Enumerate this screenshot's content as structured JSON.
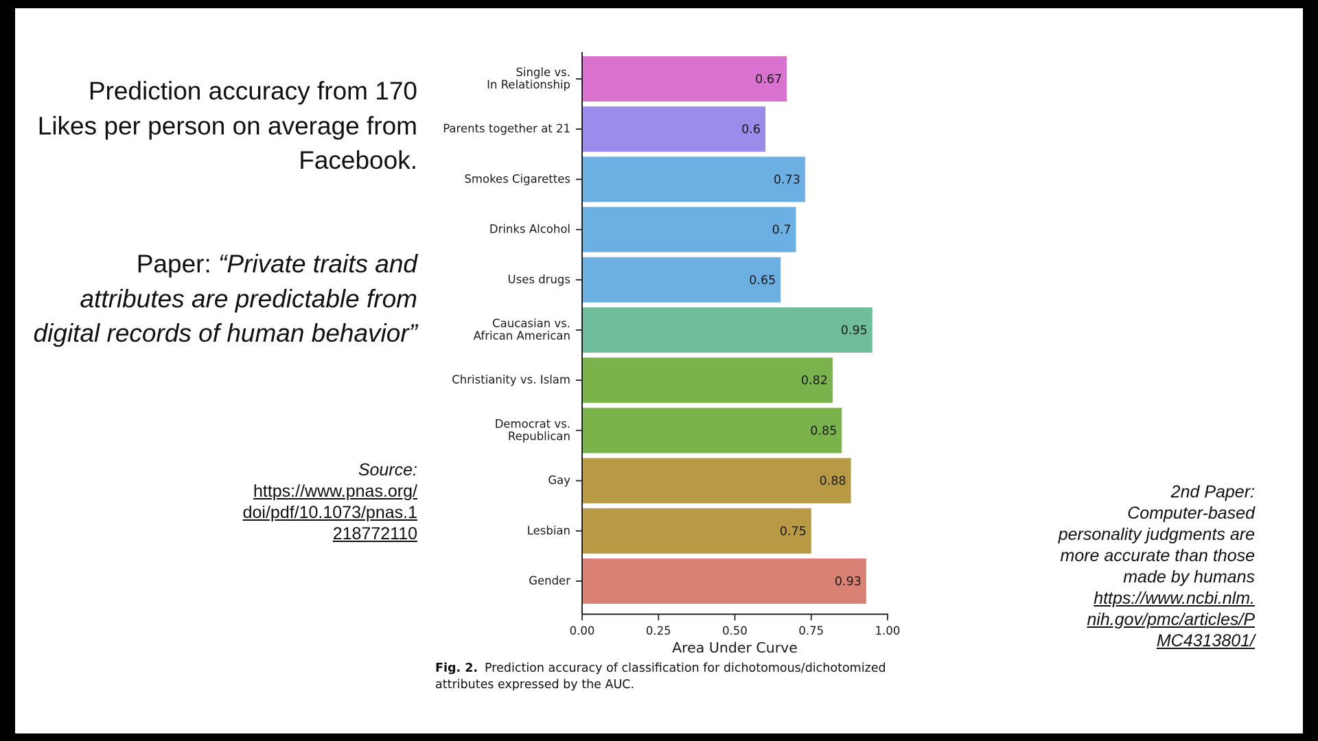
{
  "slide": {
    "headline": "Prediction accuracy from 170 Likes per person on average from Facebook.",
    "paper_prefix": "Paper: ",
    "paper_title": "“Private traits and attributes are predictable from digital records of human behavior”",
    "source_label": "Source:",
    "source_link_lines": [
      "https://www.pnas.org/",
      "doi/pdf/10.1073/pnas.1",
      "218772110"
    ],
    "second_paper_label": "2nd Paper:",
    "second_paper_title": "Computer-based personality judgments are more accurate than those made by humans",
    "second_paper_link_lines": [
      "https://www.ncbi.nlm.",
      "nih.gov/pmc/articles/P",
      "MC4313801/"
    ]
  },
  "chart_data": {
    "type": "bar",
    "orientation": "horizontal",
    "categories": [
      "Single vs.\nIn Relationship",
      "Parents together at 21",
      "Smokes Cigarettes",
      "Drinks Alcohol",
      "Uses drugs",
      "Caucasian vs.\nAfrican American",
      "Christianity vs. Islam",
      "Democrat vs.\nRepublican",
      "Gay",
      "Lesbian",
      "Gender"
    ],
    "values": [
      0.67,
      0.6,
      0.73,
      0.7,
      0.65,
      0.95,
      0.82,
      0.85,
      0.88,
      0.75,
      0.93
    ],
    "value_labels": [
      "0.67",
      "0.6",
      "0.73",
      "0.7",
      "0.65",
      "0.95",
      "0.82",
      "0.85",
      "0.88",
      "0.75",
      "0.93"
    ],
    "colors": [
      "#d972ce",
      "#9b8cec",
      "#6cb0e3",
      "#6cb0e3",
      "#6cb0e3",
      "#6fbd99",
      "#7ab24c",
      "#7ab24c",
      "#b89a45",
      "#b89a45",
      "#d98173"
    ],
    "xlim": [
      0,
      1
    ],
    "xticks": [
      "0.00",
      "0.25",
      "0.50",
      "0.75",
      "1.00"
    ],
    "xtick_values": [
      0,
      0.25,
      0.5,
      0.75,
      1.0
    ],
    "xlabel": "Area Under Curve",
    "caption_label": "Fig. 2.",
    "caption_text": "Prediction accuracy of classification for dichotomous/dichotomized attributes expressed by the AUC."
  }
}
